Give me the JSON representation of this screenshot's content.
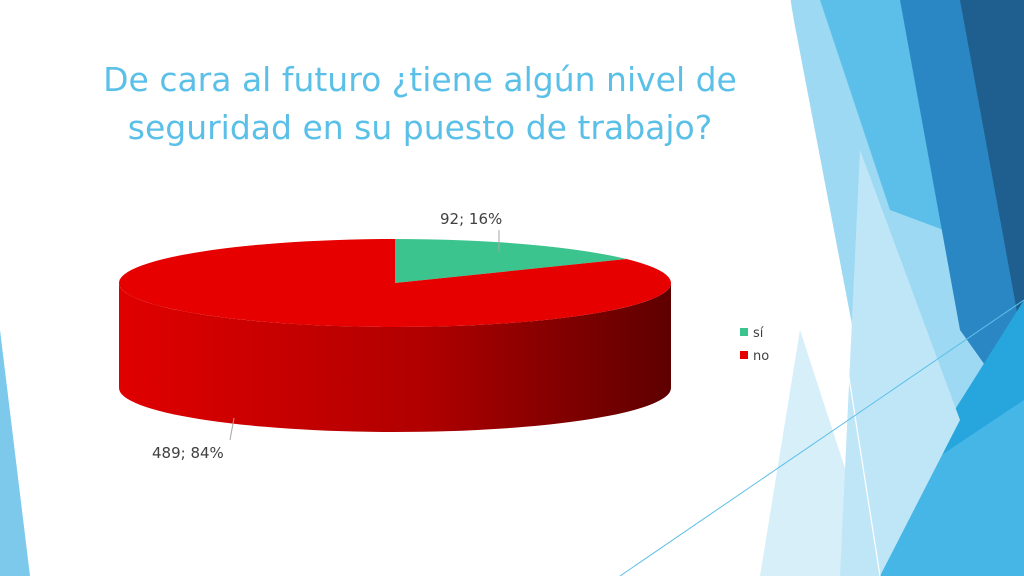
{
  "title": "De cara al futuro ¿tiene algún nivel de seguridad en su puesto de trabajo?",
  "chart_data": {
    "type": "pie",
    "title": "",
    "style": "3d",
    "categories": [
      "sí",
      "no"
    ],
    "values": [
      92,
      489
    ],
    "percents": [
      16,
      84
    ],
    "data_labels": [
      "92; 16%",
      "489; 84%"
    ],
    "colors": [
      "#3cc48e",
      "#e60000"
    ],
    "legend": "right"
  },
  "colors": {
    "title": "#5bc0e8",
    "accent_light": "#8fd3f0",
    "accent_mid": "#2ea7dc",
    "accent_dark": "#2a6fa6"
  }
}
